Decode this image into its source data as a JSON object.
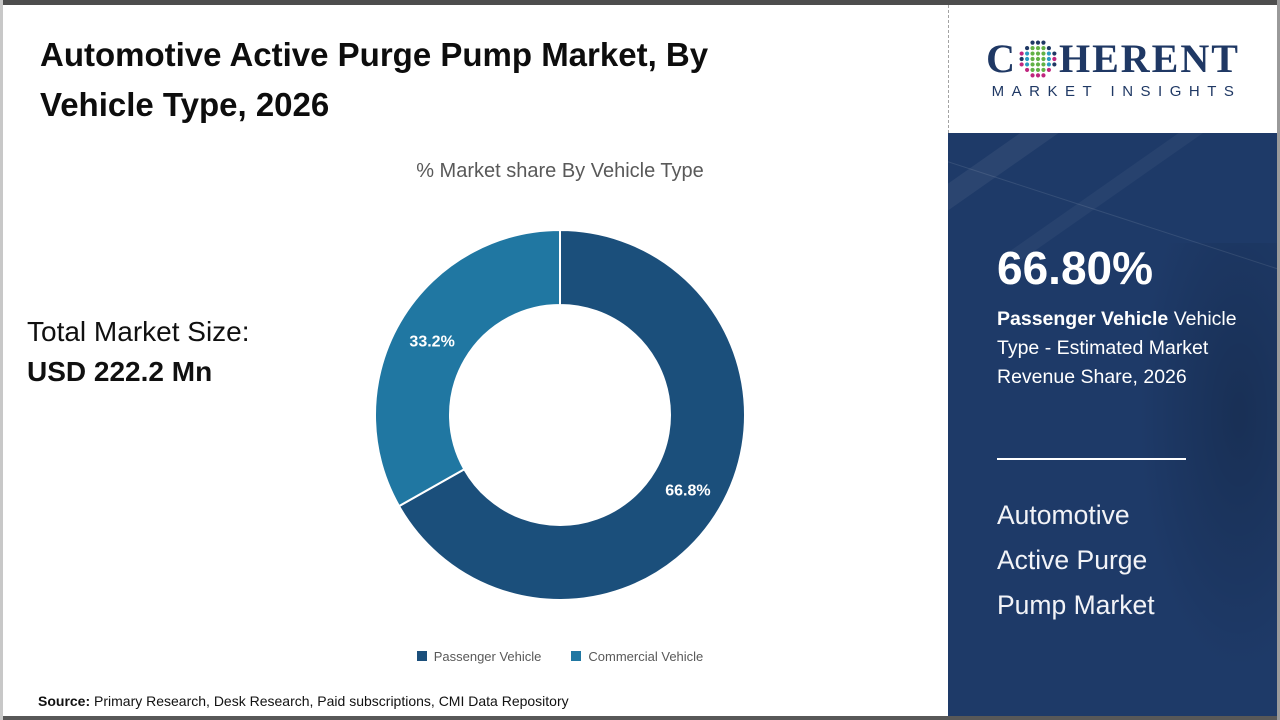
{
  "header": {
    "title_line1": "Automotive Active Purge Pump Market, By",
    "title_line2": "Vehicle Type, 2026"
  },
  "logo": {
    "brand_first_letter": "C",
    "brand_rest": "HERENT",
    "tagline": "MARKET INSIGHTS",
    "brand_color": "#1f3864",
    "globe_colors": {
      "green": "#62b146",
      "blue": "#2a9bc1",
      "magenta": "#c0267e",
      "navy": "#1f3864"
    }
  },
  "chart": {
    "subtitle": "% Market share By Vehicle Type"
  },
  "chart_data": {
    "type": "pie",
    "donut": true,
    "title": "% Market share By Vehicle Type",
    "categories": [
      "Passenger Vehicle",
      "Commercial Vehicle"
    ],
    "values": [
      66.8,
      33.2
    ],
    "slice_labels": [
      "66.8%",
      "33.2%"
    ],
    "colors": [
      "#1b4f7b",
      "#2077a2"
    ],
    "start_angle_deg": 0,
    "direction": "clockwise",
    "legend_position": "bottom"
  },
  "total_market": {
    "label": "Total Market Size:",
    "value": "USD 222.2 Mn"
  },
  "legend": {
    "items": [
      {
        "label": "Passenger Vehicle"
      },
      {
        "label": "Commercial Vehicle"
      }
    ]
  },
  "sidebar": {
    "headline": "66.80%",
    "description_bold": "Passenger Vehicle",
    "description_rest": " Vehicle Type - Estimated Market Revenue Share, 2026",
    "product_lines": [
      "Automotive",
      "Active Purge",
      "Pump Market"
    ],
    "bg_color": "#1e3a68"
  },
  "source": {
    "label": "Source:",
    "text": " Primary Research, Desk Research, Paid subscriptions, CMI Data Repository"
  }
}
